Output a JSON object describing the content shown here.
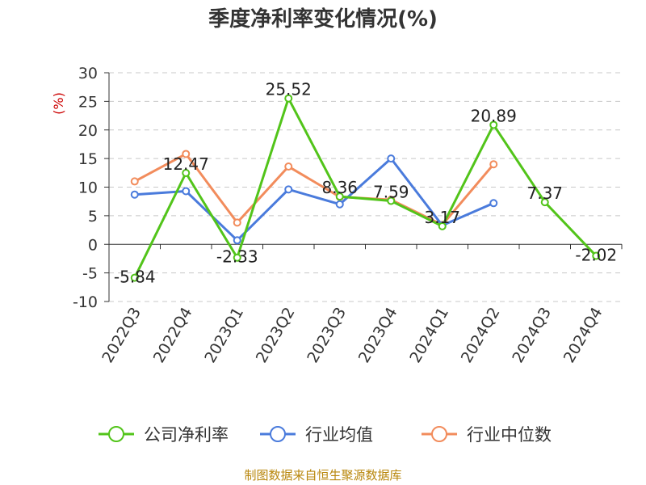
{
  "chart_data": {
    "type": "line",
    "title": "季度净利率变化情况(%)",
    "ylabel": "(%)",
    "xlabel": "",
    "ylim": [
      -10,
      30
    ],
    "yticks": [
      30,
      25,
      20,
      15,
      10,
      5,
      0,
      -5,
      -10
    ],
    "grid": true,
    "legend_position": "bottom",
    "categories": [
      "2022Q3",
      "2022Q4",
      "2023Q1",
      "2023Q2",
      "2023Q3",
      "2023Q4",
      "2024Q1",
      "2024Q2",
      "2024Q3",
      "2024Q4"
    ],
    "series": [
      {
        "name": "公司净利率",
        "color": "#52c41a",
        "values": [
          -5.84,
          12.47,
          -2.33,
          25.52,
          8.36,
          7.59,
          3.17,
          20.89,
          7.37,
          -2.02
        ],
        "labels": [
          "-5.84",
          "12.47",
          "-2.33",
          "25.52",
          "8.36",
          "7.59",
          "3.17",
          "20.89",
          "7.37",
          "-2.02"
        ]
      },
      {
        "name": "行业均值",
        "color": "#4a7bdc",
        "values": [
          8.7,
          9.3,
          0.7,
          9.6,
          7.0,
          15.0,
          3.3,
          7.2,
          null,
          null
        ]
      },
      {
        "name": "行业中位数",
        "color": "#f28c5c",
        "values": [
          11.0,
          15.8,
          3.8,
          13.6,
          8.3,
          7.8,
          3.4,
          14.0,
          null,
          null
        ]
      }
    ],
    "source": "制图数据来自恒生聚源数据库"
  }
}
